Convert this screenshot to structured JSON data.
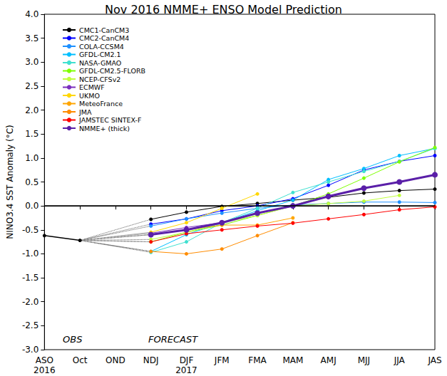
{
  "chart_data": {
    "type": "line",
    "title": "Nov 2016 NMME+ ENSO Model Prediction",
    "y_label": "NINO3.4 SST Anomaly (°C)",
    "categories": [
      "ASO\n2016",
      "Oct",
      "OND",
      "NDJ",
      "DJF\n2017",
      "JFM",
      "FMA",
      "MAM",
      "AMJ",
      "MJJ",
      "JJA",
      "JAS"
    ],
    "ylim": [
      -3.0,
      4.0
    ],
    "yticks": [
      {
        "value": -3.0,
        "label": "-3.0"
      },
      {
        "value": -2.5,
        "label": "-2.5"
      },
      {
        "value": -2.0,
        "label": "-2.0"
      },
      {
        "value": -1.5,
        "label": "-1.5"
      },
      {
        "value": -1.0,
        "label": "-1.0"
      },
      {
        "value": -0.5,
        "label": "-0.5"
      },
      {
        "value": 0.0,
        "label": "0.0"
      },
      {
        "value": 0.5,
        "label": "0.5"
      },
      {
        "value": 1.0,
        "label": "1.0"
      },
      {
        "value": 1.5,
        "label": "1.5"
      },
      {
        "value": 2.0,
        "label": "2.0"
      },
      {
        "value": 2.5,
        "label": "2.5"
      },
      {
        "value": 3.0,
        "label": "3.0"
      },
      {
        "value": 3.5,
        "label": "3.5"
      },
      {
        "value": 4.0,
        "label": "4.0"
      }
    ],
    "grid": false,
    "legend": "upper left",
    "marker": "circle",
    "reference_lines": [
      {
        "y": 0
      }
    ],
    "annotations": [
      {
        "text": "OBS"
      },
      {
        "text": "FORECAST"
      }
    ],
    "observed": {
      "color": "#000000",
      "values": [
        -0.62,
        -0.72,
        null,
        null,
        null,
        null,
        null,
        null,
        null,
        null,
        null,
        null
      ]
    },
    "series": [
      {
        "name": "CMC1-CanCM3",
        "color": "#000000",
        "values": [
          null,
          null,
          null,
          -0.28,
          -0.13,
          -0.01,
          0.05,
          0.12,
          0.18,
          0.27,
          0.32,
          0.35
        ]
      },
      {
        "name": "CMC2-CanCM4",
        "color": "#0000ff",
        "values": [
          null,
          null,
          null,
          -0.38,
          -0.27,
          -0.1,
          0.0,
          0.15,
          0.43,
          0.75,
          0.93,
          1.05
        ]
      },
      {
        "name": "COLA-CCSM4",
        "color": "#1e90ff",
        "values": [
          null,
          null,
          null,
          -0.42,
          -0.27,
          -0.15,
          -0.05,
          0.02,
          0.05,
          0.08,
          0.08,
          0.07
        ]
      },
      {
        "name": "GFDL-CM2.1",
        "color": "#00bfff",
        "values": [
          null,
          null,
          null,
          -0.95,
          -0.6,
          -0.35,
          -0.1,
          0.12,
          0.55,
          0.78,
          1.05,
          1.2
        ]
      },
      {
        "name": "NASA-GMAO",
        "color": "#40e0d0",
        "values": [
          null,
          null,
          null,
          -0.97,
          -0.75,
          -0.35,
          -0.05,
          0.28,
          0.5,
          0.72,
          0.93,
          1.2
        ]
      },
      {
        "name": "GFDL-CM2.5-FLORB",
        "color": "#7fff00",
        "values": [
          null,
          null,
          null,
          -0.75,
          -0.55,
          -0.4,
          -0.2,
          0.0,
          0.25,
          0.58,
          0.92,
          1.22
        ]
      },
      {
        "name": "NCEP-CFSv2",
        "color": "#c0ff3e",
        "values": [
          null,
          null,
          null,
          -0.7,
          -0.55,
          -0.35,
          -0.2,
          0.0,
          0.05,
          0.1,
          0.22,
          null
        ]
      },
      {
        "name": "ECMWF",
        "color": "#7b2fbe",
        "values": [
          null,
          null,
          null,
          -0.57,
          -0.45,
          -0.35,
          -0.15,
          0.0,
          0.2,
          null,
          null,
          null
        ]
      },
      {
        "name": "UKMO",
        "color": "#ffd700",
        "values": [
          null,
          null,
          null,
          -0.55,
          -0.35,
          -0.05,
          0.25,
          null,
          null,
          null,
          null,
          null
        ]
      },
      {
        "name": "MeteoFrance",
        "color": "#ffa500",
        "values": [
          null,
          null,
          null,
          -0.6,
          -0.5,
          -0.4,
          -0.4,
          -0.25,
          null,
          null,
          null,
          null
        ]
      },
      {
        "name": "JMA",
        "color": "#ff8c00",
        "values": [
          null,
          null,
          null,
          -0.95,
          -1.0,
          -0.9,
          -0.62,
          -0.35,
          null,
          null,
          null,
          null
        ]
      },
      {
        "name": "JAMSTEC SINTEX-F",
        "color": "#ff0000",
        "values": [
          null,
          null,
          null,
          -0.75,
          -0.58,
          -0.5,
          -0.42,
          -0.36,
          -0.27,
          -0.18,
          -0.08,
          -0.02
        ]
      },
      {
        "name": "NMME+ (thick)",
        "color": "#5a1fa8",
        "line_style": "thick",
        "values": [
          null,
          null,
          null,
          -0.6,
          -0.5,
          -0.35,
          -0.15,
          0.0,
          0.2,
          0.37,
          0.5,
          0.65
        ]
      }
    ]
  }
}
